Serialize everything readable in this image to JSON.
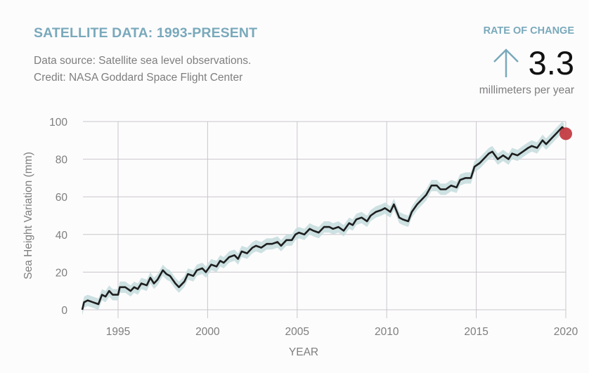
{
  "header": {
    "title": "SATELLITE DATA: 1993-PRESENT",
    "source_line": "Data source: Satellite sea level observations.",
    "credit_line": "Credit: NASA Goddard Space Flight Center"
  },
  "rate": {
    "label": "RATE OF CHANGE",
    "icon": "arrow-up-icon",
    "value": "3.3",
    "unit": "millimeters per year"
  },
  "colors": {
    "title": "#79a9bb",
    "line": "#1e1e1e",
    "band": "#c4dcdd",
    "marker": "#c1323a",
    "grid": "#c9c6cc"
  },
  "chart_data": {
    "type": "line",
    "title": "SATELLITE DATA: 1993-PRESENT",
    "xlabel": "YEAR",
    "ylabel": "Sea Height Variation (mm)",
    "xlim": [
      1993,
      2020
    ],
    "ylim": [
      0,
      100
    ],
    "xticks": [
      1995,
      2000,
      2005,
      2010,
      2015,
      2020
    ],
    "yticks": [
      0,
      20,
      40,
      60,
      80,
      100
    ],
    "grid": true,
    "uncertainty_band_mm": 3,
    "series": [
      {
        "name": "Sea Height Variation",
        "x": [
          1993.0,
          1993.1,
          1993.3,
          1993.6,
          1993.9,
          1994.1,
          1994.3,
          1994.5,
          1994.7,
          1995.0,
          1995.1,
          1995.4,
          1995.7,
          1995.9,
          1996.1,
          1996.3,
          1996.6,
          1996.8,
          1997.0,
          1997.2,
          1997.5,
          1997.7,
          1997.9,
          1998.2,
          1998.4,
          1998.7,
          1998.9,
          1999.2,
          1999.4,
          1999.7,
          1999.9,
          2000.2,
          2000.5,
          2000.7,
          2000.9,
          2001.2,
          2001.5,
          2001.7,
          2001.9,
          2002.2,
          2002.5,
          2002.7,
          2003.0,
          2003.3,
          2003.6,
          2003.9,
          2004.1,
          2004.4,
          2004.7,
          2004.9,
          2005.1,
          2005.4,
          2005.7,
          2005.9,
          2006.2,
          2006.5,
          2006.8,
          2007.0,
          2007.3,
          2007.6,
          2007.9,
          2008.1,
          2008.3,
          2008.6,
          2008.9,
          2009.1,
          2009.4,
          2009.7,
          2009.9,
          2010.2,
          2010.4,
          2010.7,
          2010.9,
          2011.2,
          2011.4,
          2011.7,
          2011.9,
          2012.2,
          2012.5,
          2012.8,
          2013.0,
          2013.3,
          2013.6,
          2013.9,
          2014.1,
          2014.4,
          2014.7,
          2014.9,
          2015.2,
          2015.4,
          2015.7,
          2015.9,
          2016.2,
          2016.5,
          2016.8,
          2017.0,
          2017.3,
          2017.6,
          2017.9,
          2018.1,
          2018.4,
          2018.7,
          2018.9,
          2019.2,
          2019.5,
          2019.8,
          2019.9
        ],
        "y": [
          0,
          4,
          5,
          4,
          3,
          8,
          7,
          10,
          8,
          8,
          12,
          12,
          10,
          12,
          11,
          14,
          13,
          17,
          14,
          16,
          21,
          19,
          18,
          14,
          12,
          15,
          19,
          18,
          21,
          22,
          20,
          24,
          23,
          26,
          25,
          28,
          29,
          27,
          31,
          30,
          33,
          34,
          33,
          35,
          35,
          36,
          34,
          37,
          37,
          40,
          41,
          40,
          43,
          42,
          41,
          44,
          44,
          43,
          44,
          42,
          46,
          45,
          48,
          49,
          47,
          50,
          52,
          53,
          54,
          52,
          56,
          49,
          48,
          47,
          52,
          56,
          58,
          61,
          66,
          66,
          64,
          64,
          66,
          65,
          69,
          70,
          70,
          76,
          78,
          80,
          83,
          84,
          80,
          82,
          80,
          83,
          82,
          84,
          86,
          87,
          86,
          90,
          88,
          91,
          94,
          97,
          96
        ]
      }
    ],
    "latest_point": {
      "x": 2020.0,
      "y": 93.5
    }
  }
}
